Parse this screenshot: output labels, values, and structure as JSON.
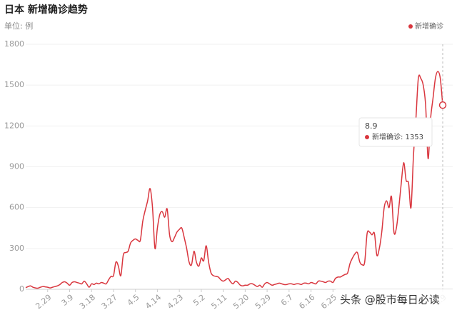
{
  "chart_data": {
    "type": "line",
    "title": "日本 新增确诊趋势",
    "subtitle": "单位: 例",
    "categories": [
      null,
      null,
      null,
      null,
      null,
      null,
      null,
      null,
      null,
      "2.29",
      null,
      null,
      null,
      null,
      null,
      null,
      null,
      null,
      "3.9",
      null,
      null,
      null,
      null,
      null,
      null,
      null,
      null,
      "3.18",
      null,
      null,
      null,
      null,
      null,
      null,
      null,
      null,
      "3.27",
      null,
      null,
      null,
      null,
      null,
      null,
      null,
      null,
      "4.5",
      null,
      null,
      null,
      null,
      null,
      null,
      null,
      null,
      "4.14",
      null,
      null,
      null,
      null,
      null,
      null,
      null,
      null,
      "4.23",
      null,
      null,
      null,
      null,
      null,
      null,
      null,
      null,
      "5.2",
      null,
      null,
      null,
      null,
      null,
      null,
      null,
      null,
      "5.11",
      null,
      null,
      null,
      null,
      null,
      null,
      null,
      null,
      "5.20",
      null,
      null,
      null,
      null,
      null,
      null,
      null,
      null,
      "5.29",
      null,
      null,
      null,
      null,
      null,
      null,
      null,
      null,
      "6.7",
      null,
      null,
      null,
      null,
      null,
      null,
      null,
      null,
      "6.16",
      null,
      null,
      null,
      null,
      null,
      null,
      null,
      null,
      "6.25",
      null,
      null,
      null,
      null,
      null,
      null,
      null,
      null,
      null,
      null,
      null,
      null,
      null,
      null,
      null,
      null,
      null,
      null,
      null,
      null,
      null,
      null,
      null,
      null,
      null,
      null,
      null,
      null,
      null,
      null,
      null,
      null,
      null,
      null,
      null,
      null,
      null,
      null,
      null,
      null,
      null,
      null,
      null,
      null,
      "8.9"
    ],
    "series": [
      {
        "name": "新增确诊",
        "color": "#d9363e",
        "values": [
          12,
          20,
          25,
          15,
          10,
          8,
          15,
          20,
          18,
          15,
          10,
          15,
          20,
          25,
          35,
          50,
          55,
          45,
          30,
          50,
          55,
          50,
          45,
          40,
          60,
          40,
          15,
          40,
          35,
          45,
          40,
          50,
          45,
          40,
          70,
          95,
          100,
          200,
          170,
          100,
          250,
          270,
          280,
          340,
          360,
          370,
          360,
          360,
          500,
          580,
          650,
          740,
          600,
          300,
          450,
          550,
          570,
          530,
          590,
          400,
          350,
          380,
          420,
          440,
          450,
          380,
          300,
          200,
          180,
          280,
          200,
          170,
          230,
          210,
          320,
          200,
          120,
          100,
          95,
          90,
          70,
          60,
          70,
          80,
          55,
          40,
          60,
          50,
          30,
          25,
          30,
          30,
          40,
          40,
          30,
          20,
          30,
          15,
          40,
          50,
          40,
          30,
          35,
          40,
          45,
          40,
          35,
          35,
          40,
          40,
          35,
          40,
          40,
          35,
          45,
          45,
          40,
          50,
          45,
          40,
          60,
          60,
          55,
          50,
          60,
          60,
          50,
          80,
          90,
          90,
          100,
          110,
          120,
          190,
          230,
          260,
          270,
          200,
          180,
          200,
          410,
          420,
          400,
          410,
          250,
          300,
          420,
          600,
          650,
          600,
          680,
          420,
          450,
          600,
          780,
          930,
          800,
          780,
          600,
          980,
          1250,
          1550,
          1550,
          1500,
          1350,
          960,
          1250,
          1400,
          1550,
          1600,
          1550,
          1353
        ]
      }
    ],
    "ylim": [
      0,
      1800
    ],
    "yticks": [
      0,
      300,
      600,
      900,
      1200,
      1500,
      1800
    ],
    "grid": true,
    "legend": "top-right",
    "tooltip": {
      "label": "新增确诊: 1353"
    },
    "watermark": "头条 @股市每日必读"
  }
}
